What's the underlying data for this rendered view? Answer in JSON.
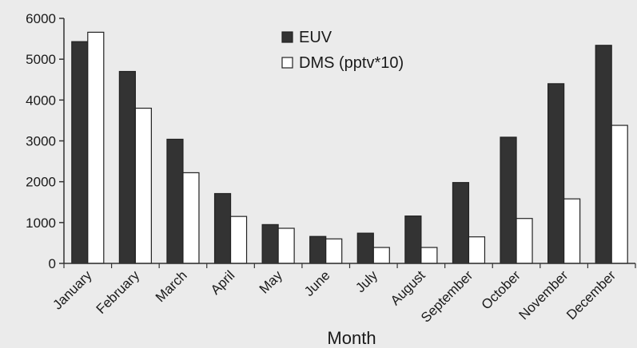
{
  "chart_data": {
    "type": "bar",
    "categories": [
      "January",
      "February",
      "March",
      "April",
      "May",
      "June",
      "July",
      "August",
      "September",
      "October",
      "November",
      "December"
    ],
    "series": [
      {
        "name": "EUV",
        "color": "#333333",
        "values": [
          5430,
          4700,
          3040,
          1710,
          950,
          660,
          740,
          1160,
          1980,
          3090,
          4400,
          5340
        ]
      },
      {
        "name": "DMS (pptv*10)",
        "color": "#ffffff",
        "values": [
          5660,
          3800,
          2220,
          1150,
          860,
          600,
          390,
          390,
          650,
          1100,
          1580,
          3380
        ]
      }
    ],
    "title": "",
    "xlabel": "Month",
    "ylabel": "",
    "ylim": [
      0,
      6000
    ],
    "yticks": [
      0,
      1000,
      2000,
      3000,
      4000,
      5000,
      6000
    ],
    "grid": false,
    "legend_position": "top-center"
  }
}
